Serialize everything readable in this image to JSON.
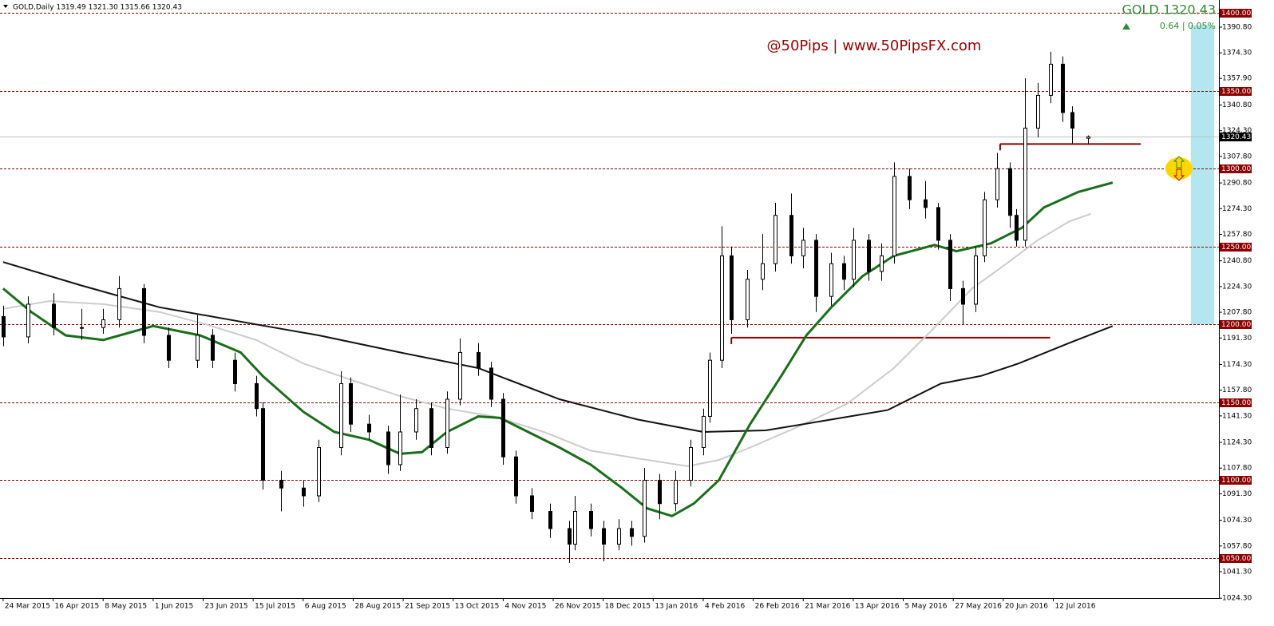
{
  "chart_data": {
    "type": "candlestick",
    "info": "GOLD,Daily  1319.49 1321.30 1315.66 1320.43",
    "symbol": "GOLD  1320.43",
    "change": "0.64 | 0.05%",
    "watermark": "@50Pips | www.50PipsFX.com",
    "xlim": [
      -1,
      389
    ],
    "ylim": [
      1024.4,
      1408.2
    ],
    "xticks": [
      {
        "value": 0,
        "label": "24 Mar 2015"
      },
      {
        "value": 16,
        "label": "16 Apr 2015"
      },
      {
        "value": 32,
        "label": "8 May 2015"
      },
      {
        "value": 48,
        "label": "1 Jun 2015"
      },
      {
        "value": 64,
        "label": "23 Jun 2015"
      },
      {
        "value": 80,
        "label": "15 Jul 2015"
      },
      {
        "value": 96,
        "label": "6 Aug 2015"
      },
      {
        "value": 112,
        "label": "28 Aug 2015"
      },
      {
        "value": 128,
        "label": "21 Sep 2015"
      },
      {
        "value": 144,
        "label": "13 Oct 2015"
      },
      {
        "value": 160,
        "label": "4 Nov 2015"
      },
      {
        "value": 176,
        "label": "26 Nov 2015"
      },
      {
        "value": 192,
        "label": "18 Dec 2015"
      },
      {
        "value": 208,
        "label": "13 Jan 2016"
      },
      {
        "value": 224,
        "label": "4 Feb 2016"
      },
      {
        "value": 240,
        "label": "26 Feb 2016"
      },
      {
        "value": 256,
        "label": "21 Mar 2016"
      },
      {
        "value": 272,
        "label": "13 Apr 2016"
      },
      {
        "value": 288,
        "label": "5 May 2016"
      },
      {
        "value": 304,
        "label": "27 May 2016"
      },
      {
        "value": 320,
        "label": "20 Jun 2016"
      },
      {
        "value": 336,
        "label": "12 Jul 2016"
      }
    ],
    "yticks": [
      {
        "value": 1390.8,
        "label": "1390.80"
      },
      {
        "value": 1374.3,
        "label": "1374.30"
      },
      {
        "value": 1357.9,
        "label": "1357.90"
      },
      {
        "value": 1340.8,
        "label": "1340.80"
      },
      {
        "value": 1324.3,
        "label": "1324.30"
      },
      {
        "value": 1307.8,
        "label": "1307.80"
      },
      {
        "value": 1290.8,
        "label": "1290.80"
      },
      {
        "value": 1274.3,
        "label": "1274.30"
      },
      {
        "value": 1257.8,
        "label": "1257.80"
      },
      {
        "value": 1240.8,
        "label": "1240.80"
      },
      {
        "value": 1224.3,
        "label": "1224.30"
      },
      {
        "value": 1207.8,
        "label": "1207.80"
      },
      {
        "value": 1191.3,
        "label": "1191.30"
      },
      {
        "value": 1174.3,
        "label": "1174.30"
      },
      {
        "value": 1157.8,
        "label": "1157.80"
      },
      {
        "value": 1141.3,
        "label": "1141.30"
      },
      {
        "value": 1124.3,
        "label": "1124.30"
      },
      {
        "value": 1107.8,
        "label": "1107.80"
      },
      {
        "value": 1091.3,
        "label": "1091.30"
      },
      {
        "value": 1074.3,
        "label": "1074.30"
      },
      {
        "value": 1057.8,
        "label": "1057.80"
      },
      {
        "value": 1041.3,
        "label": "1041.30"
      },
      {
        "value": 1024.3,
        "label": "1024.30"
      }
    ],
    "levels": [
      {
        "value": 1400,
        "label": "1400.00"
      },
      {
        "value": 1350,
        "label": "1350.00"
      },
      {
        "value": 1300,
        "label": "1300.00"
      },
      {
        "value": 1250,
        "label": "1250.00"
      },
      {
        "value": 1200,
        "label": "1200.00"
      },
      {
        "value": 1150,
        "label": "1150.00"
      },
      {
        "value": 1100,
        "label": "1100.00"
      },
      {
        "value": 1050,
        "label": "1050.00"
      }
    ],
    "level_color": "#8b0000",
    "current_price": 1320.43,
    "support_lines": [
      {
        "x": [
          233,
          335
        ],
        "y": 1191.5
      },
      {
        "x": [
          319,
          364
        ],
        "y": 1315.8
      }
    ],
    "zone": {
      "x": [
        380,
        387.5
      ],
      "y": [
        1200,
        1392
      ],
      "color": "#b4e6f0"
    },
    "candles": {
      "x": [
        0,
        8,
        16,
        25,
        32,
        37,
        45,
        53,
        62,
        67,
        74,
        81,
        83,
        89,
        96,
        101,
        108,
        111,
        117,
        123,
        127,
        132,
        137,
        142,
        146,
        152,
        156,
        160,
        164,
        169,
        175,
        181,
        183,
        188,
        192,
        197,
        201,
        205,
        210,
        215,
        220,
        224,
        226,
        230,
        233,
        238,
        243,
        247,
        252,
        256,
        260,
        265,
        269,
        272,
        277,
        281,
        285,
        290,
        295,
        299,
        303,
        307,
        311,
        314,
        318,
        322,
        324,
        327,
        331,
        335,
        339,
        342,
        347
      ],
      "open": [
        1205,
        1192,
        1213,
        1198,
        1198,
        1203,
        1223,
        1193,
        1177,
        1193,
        1177,
        1162,
        1146,
        1100,
        1095,
        1090,
        1121,
        1162,
        1136,
        1131,
        1110,
        1131,
        1146,
        1121,
        1152,
        1182,
        1172,
        1152,
        1115,
        1090,
        1080,
        1069,
        1059,
        1080,
        1069,
        1059,
        1069,
        1064,
        1100,
        1085,
        1100,
        1121,
        1141,
        1177,
        1244,
        1203,
        1229,
        1239,
        1270,
        1244,
        1254,
        1218,
        1239,
        1229,
        1254,
        1234,
        1244,
        1295,
        1280,
        1275,
        1254,
        1223,
        1213,
        1244,
        1280,
        1300,
        1270,
        1254,
        1326,
        1347,
        1367,
        1336,
        1319.49
      ],
      "high": [
        1212,
        1218,
        1220,
        1210,
        1210,
        1231,
        1226,
        1198,
        1206,
        1197,
        1182,
        1167,
        1150,
        1106,
        1100,
        1126,
        1170,
        1166,
        1142,
        1135,
        1155,
        1152,
        1150,
        1157,
        1191,
        1188,
        1176,
        1156,
        1119,
        1095,
        1085,
        1074,
        1090,
        1085,
        1074,
        1075,
        1074,
        1108,
        1104,
        1106,
        1126,
        1146,
        1182,
        1263,
        1250,
        1235,
        1258,
        1278,
        1284,
        1262,
        1258,
        1246,
        1244,
        1262,
        1258,
        1252,
        1304,
        1300,
        1292,
        1278,
        1258,
        1228,
        1250,
        1285,
        1310,
        1304,
        1274,
        1358,
        1355,
        1375,
        1372,
        1340,
        1321.3
      ],
      "low": [
        1186,
        1188,
        1193,
        1190,
        1194,
        1198,
        1188,
        1172,
        1172,
        1172,
        1157,
        1141,
        1094,
        1080,
        1083,
        1086,
        1116,
        1131,
        1126,
        1104,
        1106,
        1126,
        1116,
        1117,
        1148,
        1167,
        1147,
        1110,
        1085,
        1075,
        1063,
        1047,
        1055,
        1064,
        1048,
        1055,
        1058,
        1060,
        1075,
        1080,
        1096,
        1116,
        1137,
        1172,
        1194,
        1198,
        1222,
        1234,
        1239,
        1236,
        1208,
        1212,
        1222,
        1224,
        1228,
        1228,
        1239,
        1274,
        1268,
        1248,
        1215,
        1200,
        1208,
        1240,
        1275,
        1262,
        1250,
        1250,
        1320,
        1342,
        1330,
        1316,
        1315.66
      ],
      "close": [
        1192,
        1213,
        1198,
        1198,
        1203,
        1223,
        1193,
        1177,
        1193,
        1177,
        1162,
        1146,
        1100,
        1095,
        1090,
        1121,
        1162,
        1136,
        1131,
        1110,
        1131,
        1146,
        1121,
        1152,
        1182,
        1172,
        1152,
        1115,
        1090,
        1080,
        1069,
        1059,
        1080,
        1069,
        1059,
        1069,
        1064,
        1100,
        1085,
        1100,
        1121,
        1141,
        1177,
        1244,
        1203,
        1229,
        1239,
        1270,
        1244,
        1254,
        1218,
        1239,
        1229,
        1254,
        1234,
        1244,
        1295,
        1280,
        1275,
        1254,
        1223,
        1213,
        1244,
        1280,
        1300,
        1270,
        1254,
        1326,
        1347,
        1367,
        1336,
        1326,
        1320.43
      ]
    },
    "series": [
      {
        "color": "#cccccc",
        "width": 2,
        "x": [
          0,
          15,
          32,
          50,
          65,
          81,
          96,
          112,
          127,
          142,
          157,
          173,
          188,
          203,
          219,
          229,
          239,
          254,
          270,
          285,
          298,
          310,
          321,
          331,
          341,
          348
        ],
        "values": [
          1210,
          1215,
          1213,
          1208,
          1200,
          1190,
          1175,
          1164,
          1154,
          1146,
          1141,
          1131,
          1119,
          1114,
          1109,
          1113,
          1121,
          1134,
          1149,
          1172,
          1198,
          1223,
          1239,
          1254,
          1266,
          1271
        ]
      },
      {
        "color": "#111111",
        "width": 2,
        "x": [
          0,
          25,
          50,
          81,
          101,
          127,
          152,
          178,
          203,
          224,
          244,
          265,
          283,
          300,
          313,
          325,
          341,
          355
        ],
        "values": [
          1240,
          1225,
          1211,
          1200,
          1193,
          1182,
          1172,
          1152,
          1139,
          1131,
          1132,
          1139,
          1145,
          1162,
          1167,
          1175,
          1188,
          1199
        ]
      },
      {
        "color": "#1a6e1a",
        "width": 3,
        "x": [
          0,
          9,
          20,
          32,
          48,
          63,
          76,
          83,
          96,
          106,
          117,
          127,
          134,
          142,
          152,
          159,
          168,
          178,
          188,
          198,
          206,
          214,
          221,
          229,
          239,
          249,
          257,
          265,
          275,
          285,
          298,
          305,
          316,
          326,
          333,
          344,
          355
        ],
        "values": [
          1223,
          1208,
          1193,
          1190,
          1199,
          1193,
          1182,
          1167,
          1144,
          1131,
          1126,
          1117,
          1118,
          1131,
          1141,
          1140,
          1131,
          1121,
          1110,
          1095,
          1082,
          1077,
          1085,
          1100,
          1136,
          1167,
          1193,
          1211,
          1231,
          1244,
          1251,
          1247,
          1252,
          1262,
          1275,
          1285,
          1291
        ]
      }
    ]
  }
}
